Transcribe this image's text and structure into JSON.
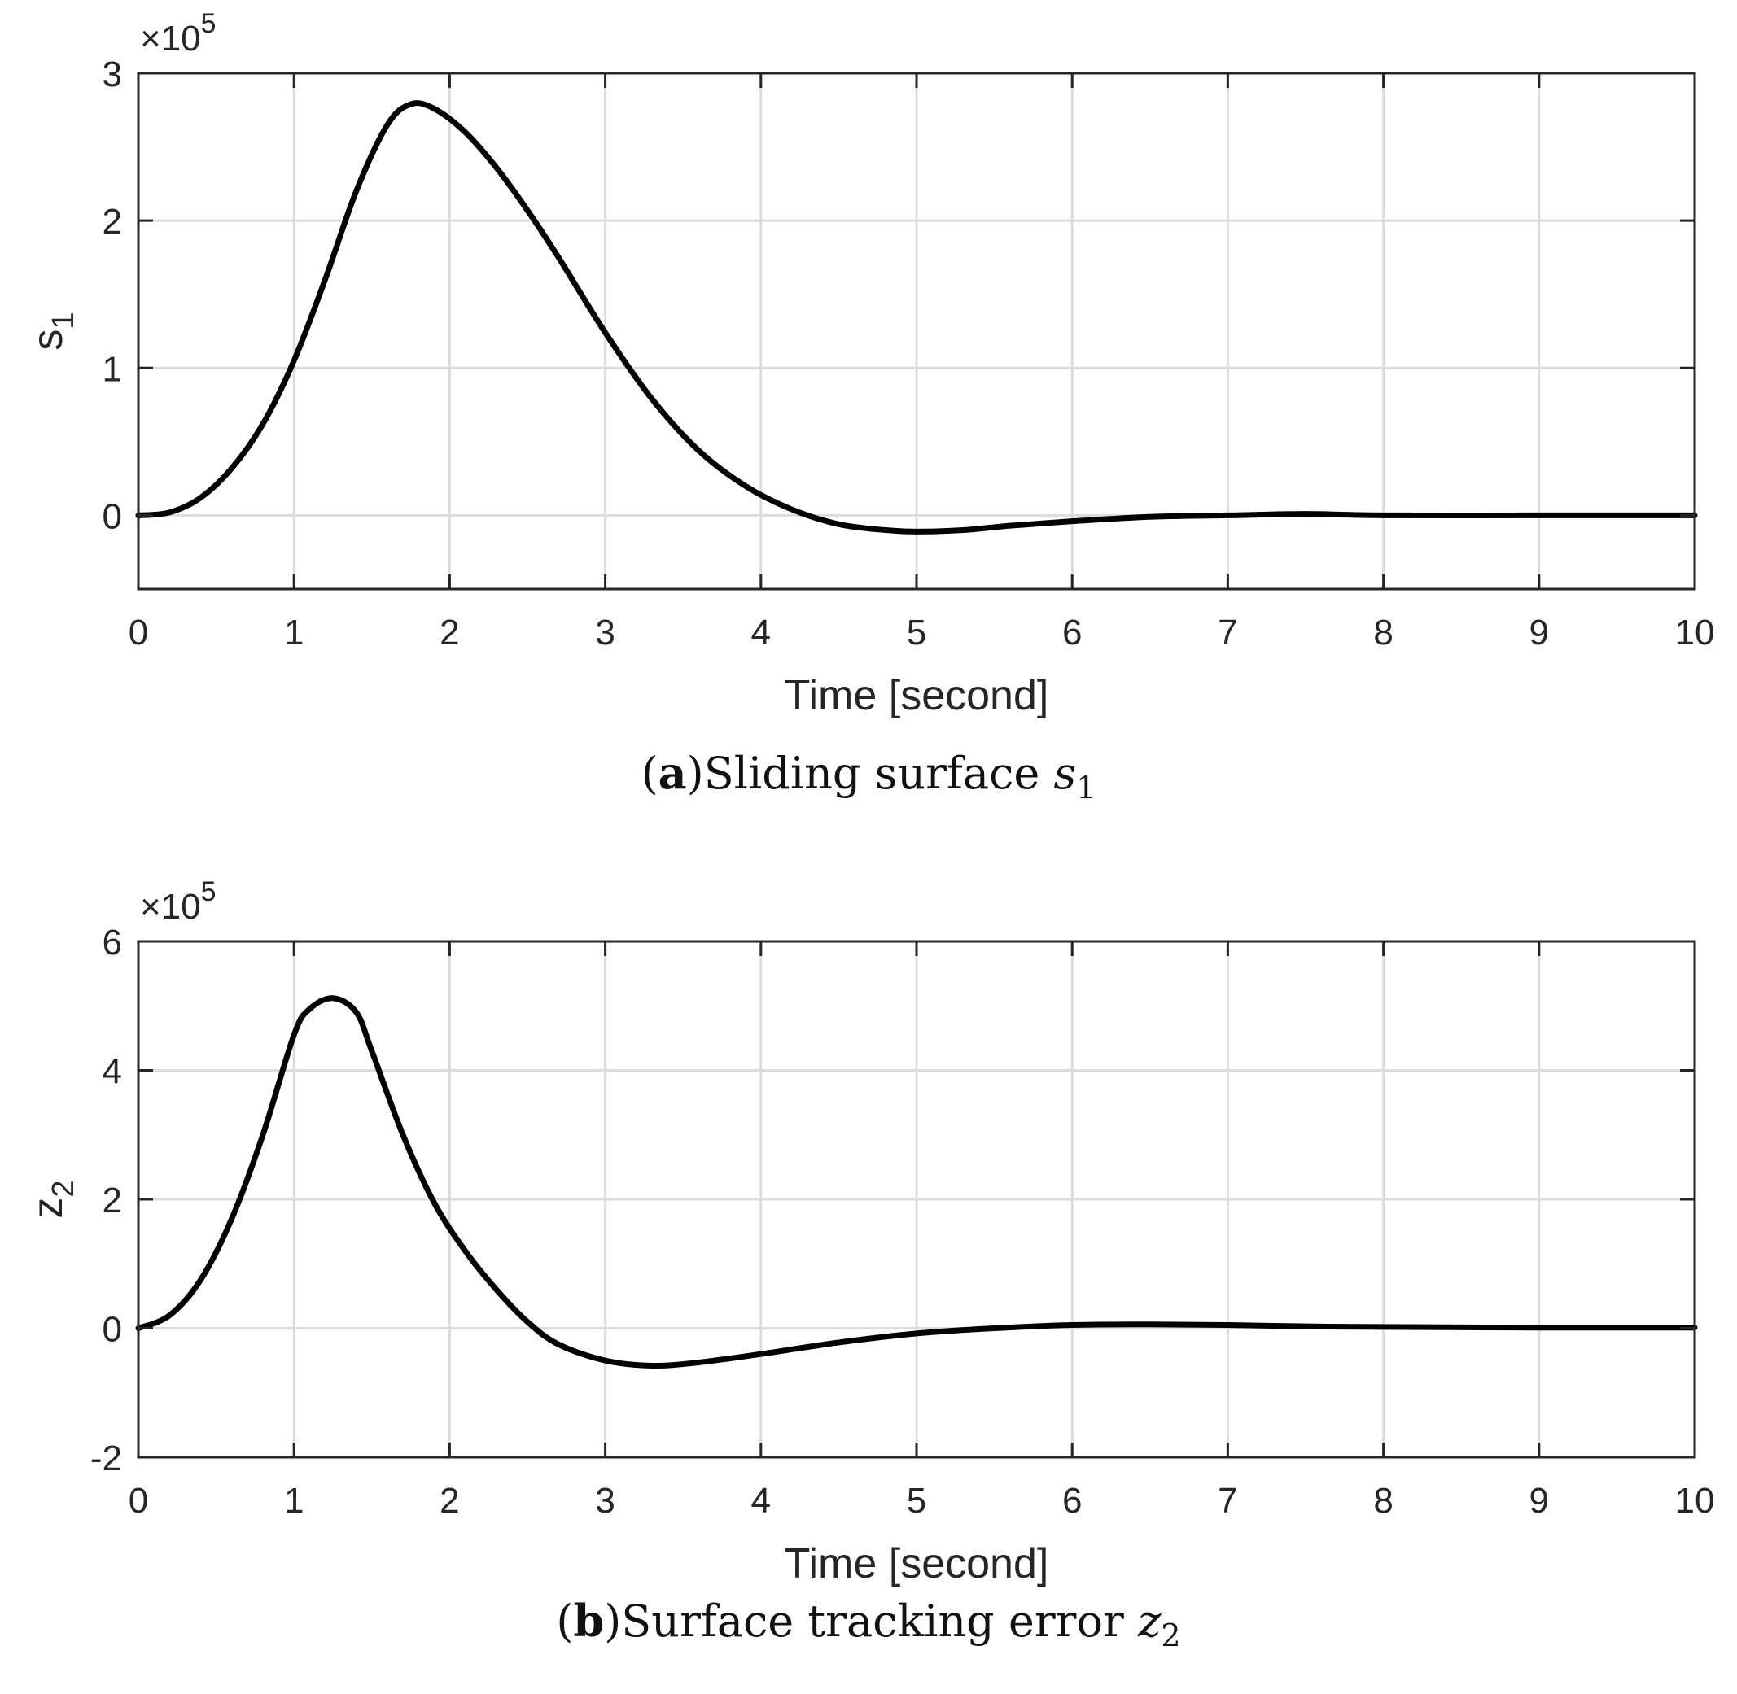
{
  "chart_data": [
    {
      "type": "line",
      "id": "a",
      "caption_tag": "a",
      "caption_text": "Sliding surface",
      "caption_var": "s",
      "caption_sub": "1",
      "ylabel": "s",
      "ylabel_sub": "1",
      "xlabel": "Time [second]",
      "multiplier_base": "×10",
      "multiplier_exp": "5",
      "xlim": [
        0,
        10
      ],
      "ylim": [
        -0.5,
        3
      ],
      "xticks": [
        "0",
        "1",
        "2",
        "3",
        "4",
        "5",
        "6",
        "7",
        "8",
        "9",
        "10"
      ],
      "yticks": [
        {
          "v": 0,
          "label": "0"
        },
        {
          "v": 1,
          "label": "1"
        },
        {
          "v": 2,
          "label": "2"
        },
        {
          "v": 3,
          "label": "3"
        }
      ],
      "grid": true,
      "series": [
        {
          "name": "s1",
          "color": "#000000",
          "x": [
            0,
            0.2,
            0.4,
            0.6,
            0.8,
            1.0,
            1.2,
            1.4,
            1.6,
            1.75,
            1.9,
            2.1,
            2.3,
            2.5,
            2.7,
            3.0,
            3.3,
            3.6,
            3.9,
            4.2,
            4.5,
            4.8,
            5.0,
            5.3,
            5.6,
            6.0,
            6.5,
            7.0,
            7.5,
            8.0,
            9.0,
            10.0
          ],
          "y": [
            0,
            0.02,
            0.12,
            0.32,
            0.62,
            1.05,
            1.6,
            2.2,
            2.65,
            2.79,
            2.76,
            2.6,
            2.36,
            2.07,
            1.75,
            1.24,
            0.79,
            0.44,
            0.2,
            0.04,
            -0.06,
            -0.1,
            -0.11,
            -0.1,
            -0.07,
            -0.04,
            -0.01,
            0.0,
            0.01,
            0.0,
            0.0,
            0.0
          ]
        }
      ]
    },
    {
      "type": "line",
      "id": "b",
      "caption_tag": "b",
      "caption_text": "Surface tracking error",
      "caption_var": "z",
      "caption_sub": "2",
      "ylabel": "z",
      "ylabel_sub": "2",
      "xlabel": "Time [second]",
      "multiplier_base": "×10",
      "multiplier_exp": "5",
      "xlim": [
        0,
        10
      ],
      "ylim": [
        -2,
        6
      ],
      "xticks": [
        "0",
        "1",
        "2",
        "3",
        "4",
        "5",
        "6",
        "7",
        "8",
        "9",
        "10"
      ],
      "yticks": [
        {
          "v": -2,
          "label": "-2"
        },
        {
          "v": 0,
          "label": "0"
        },
        {
          "v": 2,
          "label": "2"
        },
        {
          "v": 4,
          "label": "4"
        },
        {
          "v": 6,
          "label": "6"
        }
      ],
      "grid": true,
      "series": [
        {
          "name": "z2",
          "color": "#000000",
          "x": [
            0,
            0.2,
            0.4,
            0.6,
            0.8,
            1.0,
            1.1,
            1.25,
            1.4,
            1.5,
            1.7,
            1.9,
            2.1,
            2.3,
            2.5,
            2.7,
            3.0,
            3.3,
            3.6,
            4.0,
            4.5,
            5.0,
            5.5,
            6.0,
            6.5,
            7.0,
            7.5,
            8.0,
            9.0,
            10.0
          ],
          "y": [
            0,
            0.2,
            0.75,
            1.7,
            3.0,
            4.55,
            4.95,
            5.12,
            4.9,
            4.3,
            3.0,
            1.95,
            1.2,
            0.6,
            0.1,
            -0.25,
            -0.5,
            -0.58,
            -0.53,
            -0.4,
            -0.22,
            -0.08,
            0.0,
            0.05,
            0.06,
            0.05,
            0.03,
            0.02,
            0.01,
            0.01
          ]
        }
      ]
    }
  ]
}
